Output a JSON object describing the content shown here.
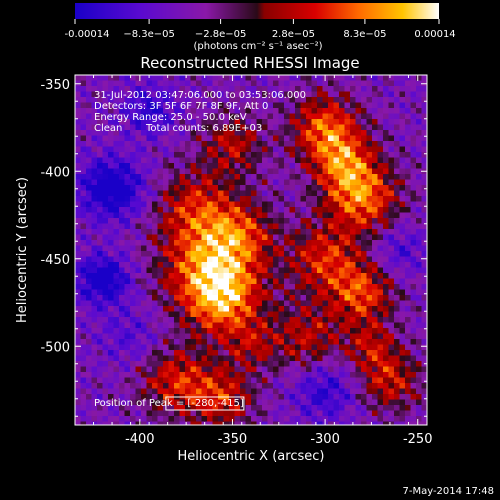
{
  "chart_data": {
    "type": "heatmap",
    "title": "Reconstructed RHESSI Image",
    "xlabel": "Heliocentric X (arcsec)",
    "ylabel": "Heliocentric Y (arcsec)",
    "xlim": [
      -435,
      -245
    ],
    "ylim": [
      -545,
      -345
    ],
    "xticks": [
      -400,
      -350,
      -300,
      -250
    ],
    "yticks": [
      -350,
      -400,
      -450,
      -500
    ],
    "colorbar": {
      "range": [
        -0.00014,
        0.00014
      ],
      "tick_values": [
        -0.00014,
        -8.3e-05,
        -2.8e-05,
        2.8e-05,
        8.3e-05,
        0.00014
      ],
      "tick_labels": [
        "-0.00014",
        "−8.3e−05",
        "−2.8e−05",
        "2.8e−05",
        "8.3e−05",
        "0.00014"
      ],
      "label": "(photons cm⁻² s⁻¹ asec⁻²)"
    },
    "annotations": [
      "31-Jul-2012 03:47:06.000 to 03:53:06.000",
      "Detectors: 3F 5F 6F 7F 8F 9F, Att 0",
      "Energy Range: 25.0 - 50.0 keV",
      "Clean",
      "Total counts: 6.89E+03"
    ],
    "peak_label": "Position of Peak = [-280,-415]",
    "peak": {
      "x": -280,
      "y": -415
    },
    "footer_date": "7-May-2014 17:48",
    "blobs": [
      {
        "x": -362,
        "y": -455,
        "amp": 0.00014,
        "r": 18
      },
      {
        "x": -355,
        "y": -475,
        "amp": 0.00011,
        "r": 14
      },
      {
        "x": -370,
        "y": -420,
        "amp": 9e-05,
        "r": 15
      },
      {
        "x": -345,
        "y": -435,
        "amp": 8e-05,
        "r": 13
      },
      {
        "x": -350,
        "y": -385,
        "amp": 8e-05,
        "r": 12
      },
      {
        "x": -300,
        "y": -375,
        "amp": 0.00012,
        "r": 13
      },
      {
        "x": -290,
        "y": -395,
        "amp": 0.0001,
        "r": 12
      },
      {
        "x": -280,
        "y": -415,
        "amp": 0.00013,
        "r": 14
      },
      {
        "x": -300,
        "y": -450,
        "amp": 0.0001,
        "r": 14
      },
      {
        "x": -280,
        "y": -470,
        "amp": 0.00011,
        "r": 12
      },
      {
        "x": -310,
        "y": -495,
        "amp": 8e-05,
        "r": 14
      },
      {
        "x": -380,
        "y": -520,
        "amp": 0.0001,
        "r": 14
      },
      {
        "x": -355,
        "y": -530,
        "amp": 9e-05,
        "r": 12
      },
      {
        "x": -265,
        "y": -520,
        "amp": 9e-05,
        "r": 12
      },
      {
        "x": -275,
        "y": -500,
        "amp": 7e-05,
        "r": 10
      },
      {
        "x": -340,
        "y": -500,
        "amp": 6e-05,
        "r": 10
      },
      {
        "x": -415,
        "y": -410,
        "amp": -0.00012,
        "r": 12
      },
      {
        "x": -420,
        "y": -462,
        "amp": -0.00011,
        "r": 10
      },
      {
        "x": -395,
        "y": -365,
        "amp": -7e-05,
        "r": 10
      },
      {
        "x": -300,
        "y": -525,
        "amp": -7e-05,
        "r": 12
      },
      {
        "x": -260,
        "y": -445,
        "amp": -5e-05,
        "r": 10
      },
      {
        "x": -405,
        "y": -495,
        "amp": -4e-05,
        "r": 12
      }
    ]
  }
}
